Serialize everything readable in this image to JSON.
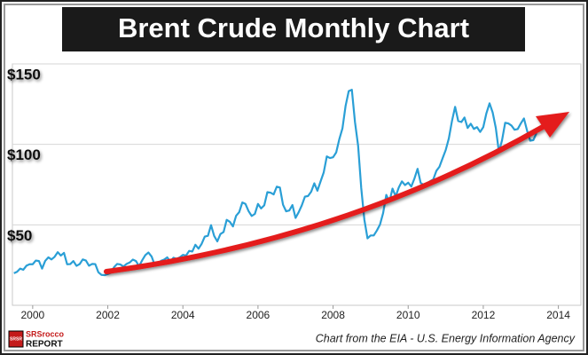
{
  "chart_data": {
    "type": "line",
    "title": "Brent Crude Monthly Chart",
    "source": "Chart from the EIA - U.S. Energy Information Agency",
    "logo": {
      "small": "SRSR",
      "top": "SRSrocco",
      "bottom": "REPORT"
    },
    "color": "#2a9fd6",
    "grid": true,
    "xlim": [
      1999.46,
      2014.6
    ],
    "xticks": [
      2000,
      2002,
      2004,
      2006,
      2008,
      2010,
      2012,
      2014
    ],
    "ylim": [
      0,
      150
    ],
    "yticks": [
      {
        "value": 50,
        "label": "$50"
      },
      {
        "value": 100,
        "label": "$100"
      },
      {
        "value": 150,
        "label": "$150"
      }
    ],
    "x": [
      1999.5,
      1999.583,
      1999.667,
      1999.75,
      1999.833,
      1999.917,
      2000,
      2000.083,
      2000.167,
      2000.25,
      2000.333,
      2000.417,
      2000.5,
      2000.583,
      2000.667,
      2000.75,
      2000.833,
      2000.917,
      2001,
      2001.083,
      2001.167,
      2001.25,
      2001.333,
      2001.417,
      2001.5,
      2001.583,
      2001.667,
      2001.75,
      2001.833,
      2001.917,
      2002,
      2002.083,
      2002.167,
      2002.25,
      2002.333,
      2002.417,
      2002.5,
      2002.583,
      2002.667,
      2002.75,
      2002.833,
      2002.917,
      2003,
      2003.083,
      2003.167,
      2003.25,
      2003.333,
      2003.417,
      2003.5,
      2003.583,
      2003.667,
      2003.75,
      2003.833,
      2003.917,
      2004,
      2004.083,
      2004.167,
      2004.25,
      2004.333,
      2004.417,
      2004.5,
      2004.583,
      2004.667,
      2004.75,
      2004.833,
      2004.917,
      2005,
      2005.083,
      2005.167,
      2005.25,
      2005.333,
      2005.417,
      2005.5,
      2005.583,
      2005.667,
      2005.75,
      2005.833,
      2005.917,
      2006,
      2006.083,
      2006.167,
      2006.25,
      2006.333,
      2006.417,
      2006.5,
      2006.583,
      2006.667,
      2006.75,
      2006.833,
      2006.917,
      2007,
      2007.083,
      2007.167,
      2007.25,
      2007.333,
      2007.417,
      2007.5,
      2007.583,
      2007.667,
      2007.75,
      2007.833,
      2007.917,
      2008,
      2008.083,
      2008.167,
      2008.25,
      2008.333,
      2008.417,
      2008.5,
      2008.583,
      2008.667,
      2008.75,
      2008.833,
      2008.917,
      2009,
      2009.083,
      2009.167,
      2009.25,
      2009.333,
      2009.417,
      2009.5,
      2009.583,
      2009.667,
      2009.75,
      2009.833,
      2009.917,
      2010,
      2010.083,
      2010.167,
      2010.25,
      2010.333,
      2010.417,
      2010.5,
      2010.583,
      2010.667,
      2010.75,
      2010.833,
      2010.917,
      2011,
      2011.083,
      2011.167,
      2011.25,
      2011.333,
      2011.417,
      2011.5,
      2011.583,
      2011.667,
      2011.75,
      2011.833,
      2011.917,
      2012,
      2012.083,
      2012.167,
      2012.25,
      2012.333,
      2012.417,
      2012.5,
      2012.583,
      2012.667,
      2012.75,
      2012.833,
      2012.917,
      2013,
      2013.083,
      2013.167,
      2013.25,
      2013.333,
      2013.417
    ],
    "values": [
      19.9,
      20.8,
      22.8,
      22.1,
      24.6,
      25.5,
      25.5,
      27.8,
      27.5,
      22.8,
      27.6,
      29.8,
      28.5,
      30.1,
      33.0,
      30.9,
      32.6,
      25.5,
      25.6,
      27.5,
      24.5,
      25.6,
      28.5,
      27.8,
      24.6,
      25.7,
      25.6,
      20.5,
      18.9,
      18.7,
      19.4,
      20.3,
      23.7,
      25.7,
      25.4,
      24.1,
      25.7,
      26.6,
      28.4,
      27.5,
      24.3,
      28.0,
      31.2,
      32.8,
      30.3,
      25.0,
      25.8,
      27.6,
      28.4,
      29.8,
      27.1,
      29.6,
      28.8,
      29.8,
      31.3,
      30.9,
      33.8,
      33.4,
      37.6,
      35.2,
      38.2,
      42.7,
      43.2,
      49.8,
      43.1,
      39.7,
      44.3,
      45.5,
      53.1,
      51.9,
      49.0,
      55.6,
      57.9,
      63.9,
      63.0,
      58.5,
      55.5,
      56.8,
      63.0,
      60.2,
      62.1,
      70.3,
      70.0,
      68.9,
      73.7,
      73.2,
      62.5,
      58.4,
      58.9,
      62.3,
      54.3,
      57.8,
      62.1,
      67.5,
      67.9,
      70.6,
      75.8,
      71.2,
      77.0,
      82.5,
      92.5,
      91.5,
      92.0,
      95.0,
      103.3,
      110.0,
      123.9,
      133.1,
      133.9,
      113.9,
      99.1,
      72.8,
      53.2,
      41.6,
      43.4,
      43.4,
      46.5,
      50.2,
      57.3,
      68.6,
      64.4,
      72.5,
      67.7,
      73.2,
      77.0,
      74.7,
      76.2,
      73.8,
      78.8,
      84.8,
      76.0,
      74.8,
      75.6,
      77.1,
      78.2,
      83.5,
      86.1,
      91.4,
      96.5,
      103.7,
      114.6,
      123.3,
      114.5,
      113.9,
      116.7,
      110.2,
      112.8,
      109.6,
      110.7,
      107.7,
      110.7,
      119.3,
      125.5,
      119.8,
      110.3,
      95.2,
      102.6,
      113.4,
      113.0,
      111.7,
      109.1,
      109.5,
      113.0,
      116.1,
      108.5,
      102.3,
      102.6,
      107.0
    ]
  }
}
